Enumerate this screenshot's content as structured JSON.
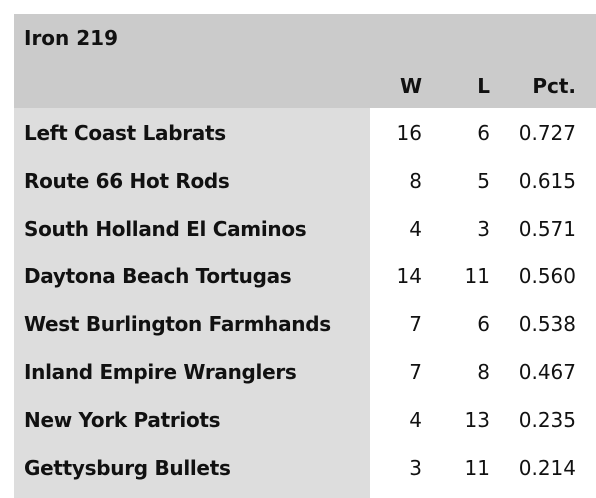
{
  "header": {
    "title": "Iron 219",
    "columns": [
      "W",
      "L",
      "Pct."
    ]
  },
  "table": {
    "rows": [
      [
        "Left Coast Labrats",
        16,
        6,
        "0.727"
      ],
      [
        "Route 66 Hot Rods",
        8,
        5,
        "0.615"
      ],
      [
        "South Holland El Caminos",
        4,
        3,
        "0.571"
      ],
      [
        "Daytona Beach Tortugas",
        14,
        11,
        "0.560"
      ],
      [
        "West Burlington Farmhands",
        7,
        6,
        "0.538"
      ],
      [
        "Inland Empire Wranglers",
        7,
        8,
        "0.467"
      ],
      [
        "New York Patriots",
        4,
        13,
        "0.235"
      ],
      [
        "Gettysburg Bullets",
        3,
        11,
        "0.214"
      ]
    ]
  }
}
